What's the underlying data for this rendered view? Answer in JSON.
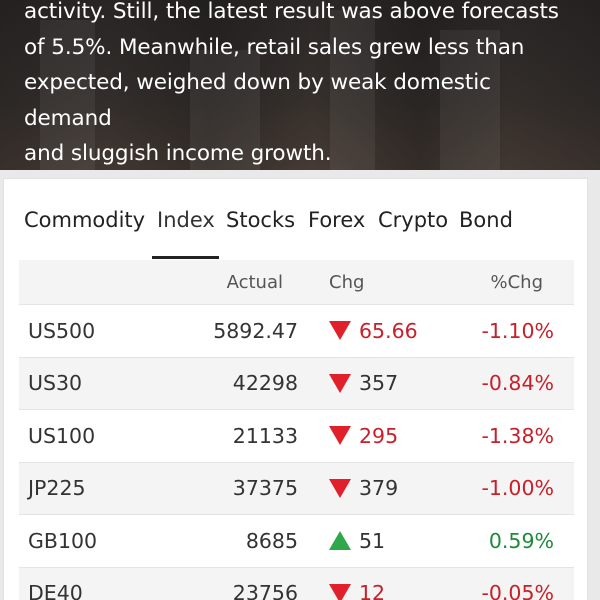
{
  "article": {
    "lines": [
      "activity. Still, the latest result was above forecasts",
      "of 5.5%. Meanwhile, retail sales grew less than",
      "expected, weighed down by weak domestic demand",
      "and sluggish income growth."
    ]
  },
  "market": {
    "tabs": [
      "Commodity",
      "Index",
      "Stocks",
      "Forex",
      "Crypto",
      "Bond"
    ],
    "active_tab": "Index",
    "columns": {
      "symbol": "",
      "actual": "Actual",
      "chg": "Chg",
      "pct": "%Chg"
    },
    "rows": [
      {
        "symbol": "US500",
        "actual": "5892.47",
        "chg": "65.66",
        "pct": "-1.10%",
        "dir": "down",
        "chg_tone": "neg"
      },
      {
        "symbol": "US30",
        "actual": "42298",
        "chg": "357",
        "pct": "-0.84%",
        "dir": "down",
        "chg_tone": "neutral"
      },
      {
        "symbol": "US100",
        "actual": "21133",
        "chg": "295",
        "pct": "-1.38%",
        "dir": "down",
        "chg_tone": "neg"
      },
      {
        "symbol": "JP225",
        "actual": "37375",
        "chg": "379",
        "pct": "-1.00%",
        "dir": "down",
        "chg_tone": "neutral"
      },
      {
        "symbol": "GB100",
        "actual": "8685",
        "chg": "51",
        "pct": "0.59%",
        "dir": "up",
        "chg_tone": "neutral"
      },
      {
        "symbol": "DE40",
        "actual": "23756",
        "chg": "12",
        "pct": "-0.05%",
        "dir": "down",
        "chg_tone": "neg"
      }
    ]
  },
  "colors": {
    "down": "#e0202a",
    "up": "#2ea84a",
    "neg_text": "#c8202a",
    "pos_text": "#1e8a3a"
  },
  "icons": {
    "down": "triangle-down-icon",
    "up": "triangle-up-icon"
  }
}
